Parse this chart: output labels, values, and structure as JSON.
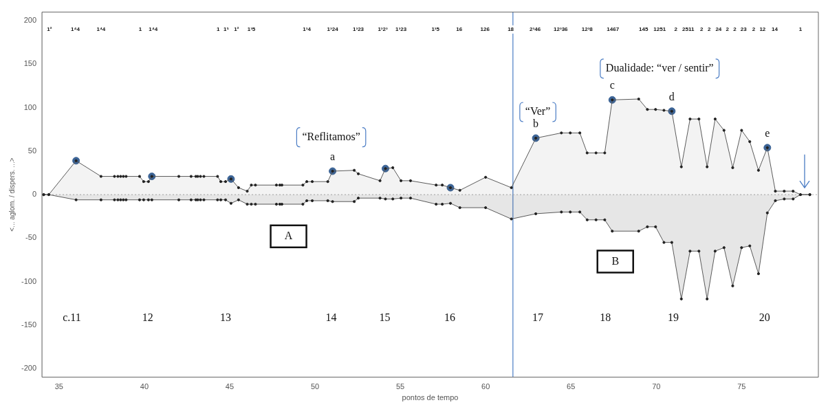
{
  "chart_data": {
    "type": "area",
    "xlabel": "pontos de tempo",
    "ylabel": "<... aglom. / dispers. ...>",
    "x": [
      34.1,
      34.4,
      36.0,
      37.46,
      38.25,
      38.45,
      38.61,
      38.77,
      38.93,
      39.72,
      39.96,
      40.24,
      40.44,
      42.02,
      42.74,
      43.02,
      43.13,
      43.29,
      43.49,
      44.29,
      44.48,
      44.76,
      45.08,
      45.52,
      46.03,
      46.27,
      46.51,
      47.74,
      47.94,
      48.06,
      49.29,
      49.52,
      49.84,
      50.75,
      51.03,
      52.3,
      52.54,
      53.81,
      54.13,
      54.56,
      55.04,
      55.6,
      57.1,
      57.46,
      57.94,
      58.49,
      60.0,
      61.51,
      62.94,
      64.44,
      64.96,
      65.52,
      65.95,
      66.47,
      66.98,
      67.42,
      68.97,
      69.48,
      69.96,
      70.45,
      70.91,
      71.47,
      71.98,
      72.5,
      72.98,
      73.45,
      73.97,
      74.48,
      75.0,
      75.48,
      75.99,
      76.51,
      76.98,
      77.5,
      78.02,
      78.45,
      79.0
    ],
    "series": [
      {
        "color": "#5a5a5a",
        "values": [
          0,
          0,
          39,
          21,
          21,
          21,
          21,
          21,
          21,
          21,
          15,
          15,
          21,
          21,
          21,
          21,
          21,
          21,
          21,
          21,
          15,
          15,
          18,
          8,
          4,
          11,
          11,
          11,
          11,
          11,
          11,
          15,
          15,
          15,
          27,
          28,
          24,
          16,
          30,
          31,
          16,
          16,
          11,
          11,
          8,
          5,
          20,
          8,
          65,
          71,
          71,
          71,
          48,
          48,
          48,
          109,
          110,
          98,
          98,
          97,
          96,
          32,
          87,
          87,
          32,
          87,
          74,
          31,
          74,
          61,
          28,
          54,
          4,
          4,
          4,
          0,
          0
        ]
      },
      {
        "color": "#5a5a5a",
        "values": [
          0,
          0,
          -6,
          -6,
          -6,
          -6,
          -6,
          -6,
          -6,
          -6,
          -6,
          -6,
          -6,
          -6,
          -6,
          -6,
          -6,
          -6,
          -6,
          -6,
          -6,
          -6,
          -10,
          -6,
          -11,
          -11,
          -11,
          -11,
          -11,
          -11,
          -11,
          -7,
          -7,
          -7,
          -8,
          -8,
          -4,
          -4,
          -5,
          -5,
          -4,
          -4,
          -11,
          -11,
          -10,
          -15,
          -15,
          -28,
          -22,
          -20,
          -20,
          -20,
          -29,
          -29,
          -29,
          -42,
          -42,
          -37,
          -37,
          -55,
          -55,
          -120,
          -65,
          -65,
          -120,
          -65,
          -61,
          -105,
          -61,
          -59,
          -91,
          -21,
          -7,
          -5,
          -5,
          0,
          0
        ]
      },
      {
        "type": "scatter",
        "color": "#3c6496",
        "x": [
          36.0,
          40.44,
          45.08,
          51.03,
          54.13,
          57.94,
          62.94,
          67.42,
          70.91,
          76.51
        ],
        "values": [
          39,
          21,
          18,
          27,
          30,
          8,
          65,
          109,
          96,
          54
        ]
      }
    ],
    "xlim": [
      34,
      79.5
    ],
    "xticks": [
      35,
      40,
      45,
      50,
      55,
      60,
      65,
      70,
      75
    ],
    "ylim": [
      -210,
      210
    ],
    "yticks": [
      -200,
      -150,
      -100,
      -50,
      0,
      50,
      100,
      150,
      200
    ],
    "ref_lines": [
      {
        "axis": "x",
        "value": 61.6,
        "color": "#4a7cc4"
      },
      {
        "axis": "y",
        "value": 0,
        "color": "#bbbbbb",
        "line_style": "dotted"
      }
    ],
    "annotations": [
      {
        "text": "a",
        "x": 51.03,
        "y": 27
      },
      {
        "text": "b",
        "x": 62.94,
        "y": 65
      },
      {
        "text": "c",
        "x": 67.42,
        "y": 109
      },
      {
        "text": "d",
        "x": 70.91,
        "y": 96
      },
      {
        "text": "e",
        "x": 76.51,
        "y": 54
      },
      "“Reflitamos”",
      "“Ver”",
      "Dualidade: “ver / sentir”",
      "A",
      "B",
      "c.11",
      "12",
      "13",
      "14",
      "15",
      "16",
      "17",
      "18",
      "19",
      "20",
      "1²",
      "1⁴4",
      "1⁴4",
      "1",
      "1⁴4",
      "1",
      "1⁵",
      "1²",
      "1³5",
      "1³4",
      "1³24",
      "1³23",
      "1³2³",
      "1³23",
      "1³5",
      "16",
      "126",
      "18",
      "2³46",
      "12³36",
      "12³8",
      "1467",
      "145",
      "1251",
      "2",
      "2511",
      "2",
      "2",
      "24",
      "2",
      "2",
      "23",
      "2",
      "12",
      "14",
      "1"
    ],
    "marker": "circle",
    "grid": false,
    "legend": false
  }
}
